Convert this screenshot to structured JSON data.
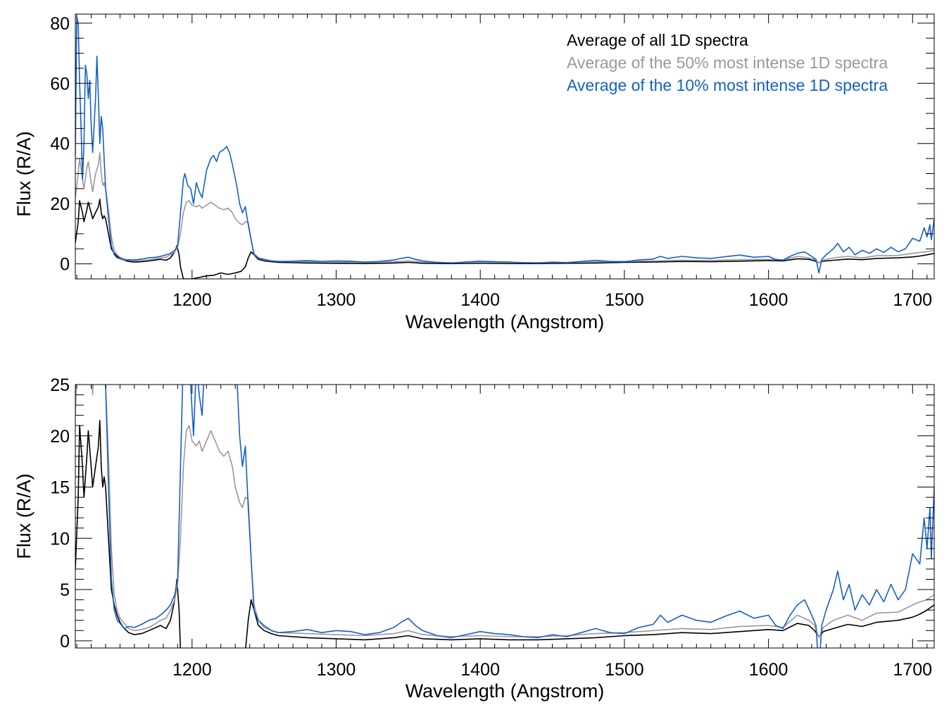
{
  "colors": {
    "all": "#000000",
    "top50": "#999999",
    "top10": "#1560c8"
  },
  "chart_data": [
    {
      "type": "line",
      "title": "",
      "xlabel": "Wavelength (Angstrom)",
      "ylabel": "Flux (R/A)",
      "xlim": [
        1119,
        1715
      ],
      "ylim": [
        -5,
        83
      ],
      "xticks": [
        1200,
        1300,
        1400,
        1500,
        1600,
        1700
      ],
      "xtick_labels": [
        "1200",
        "1300",
        "1400",
        "1500",
        "1600",
        "1700"
      ],
      "yticks": [
        0,
        20,
        40,
        60,
        80
      ],
      "ytick_labels": [
        "0",
        "20",
        "40",
        "60",
        "80"
      ],
      "x_minor_step": 10,
      "y_minor_step": 5,
      "grid": false,
      "legend": {
        "placement": "top-right",
        "entries": [
          {
            "label": "Average of all 1D spectra",
            "series": "all"
          },
          {
            "label": "Average of the 50% most intense 1D spectra",
            "series": "top50"
          },
          {
            "label": "Average of the 10% most intense 1D spectra",
            "series": "top10"
          }
        ]
      },
      "series_ref": "spectra"
    },
    {
      "type": "line",
      "title": "",
      "xlabel": "Wavelength (Angstrom)",
      "ylabel": "Flux (R/A)",
      "xlim": [
        1119,
        1715
      ],
      "ylim": [
        -0.7,
        25
      ],
      "xticks": [
        1200,
        1300,
        1400,
        1500,
        1600,
        1700
      ],
      "xtick_labels": [
        "1200",
        "1300",
        "1400",
        "1500",
        "1600",
        "1700"
      ],
      "yticks": [
        0,
        5,
        10,
        15,
        20,
        25
      ],
      "ytick_labels": [
        "0",
        "5",
        "10",
        "15",
        "20",
        "25"
      ],
      "x_minor_step": 10,
      "y_minor_step": 1,
      "grid": false,
      "series_ref": "spectra"
    }
  ],
  "spectra": [
    {
      "key": "all",
      "name": "Average of all 1D spectra",
      "points": [
        [
          1119,
          7
        ],
        [
          1121,
          14
        ],
        [
          1122,
          21
        ],
        [
          1124,
          17
        ],
        [
          1125,
          14
        ],
        [
          1127,
          18
        ],
        [
          1128,
          20.5
        ],
        [
          1130,
          17
        ],
        [
          1131,
          15
        ],
        [
          1133,
          17
        ],
        [
          1135,
          19
        ],
        [
          1136,
          21.5
        ],
        [
          1137,
          17
        ],
        [
          1138,
          15
        ],
        [
          1139,
          16
        ],
        [
          1140,
          15
        ],
        [
          1142,
          10
        ],
        [
          1144,
          5
        ],
        [
          1146,
          3.5
        ],
        [
          1148,
          2.5
        ],
        [
          1150,
          1.8
        ],
        [
          1153,
          1.2
        ],
        [
          1156,
          0.8
        ],
        [
          1160,
          0.6
        ],
        [
          1165,
          0.7
        ],
        [
          1170,
          1.0
        ],
        [
          1175,
          1.3
        ],
        [
          1178,
          1.5
        ],
        [
          1182,
          1.2
        ],
        [
          1185,
          2
        ],
        [
          1188,
          4
        ],
        [
          1189.5,
          6
        ],
        [
          1191,
          3
        ],
        [
          1192,
          -1
        ],
        [
          1194,
          -5
        ],
        [
          1200,
          -5
        ],
        [
          1205,
          -4.5
        ],
        [
          1210,
          -4
        ],
        [
          1215,
          -3.8
        ],
        [
          1220,
          -3
        ],
        [
          1225,
          -3.5
        ],
        [
          1230,
          -3
        ],
        [
          1234,
          -2.5
        ],
        [
          1237,
          -1
        ],
        [
          1239,
          2
        ],
        [
          1241,
          4
        ],
        [
          1243,
          3
        ],
        [
          1246,
          1.5
        ],
        [
          1250,
          1
        ],
        [
          1255,
          0.7
        ],
        [
          1260,
          0.5
        ],
        [
          1280,
          0.3
        ],
        [
          1300,
          0.2
        ],
        [
          1320,
          0.1
        ],
        [
          1340,
          0.3
        ],
        [
          1350,
          0.5
        ],
        [
          1360,
          0.2
        ],
        [
          1380,
          0.1
        ],
        [
          1400,
          0.2
        ],
        [
          1420,
          0.1
        ],
        [
          1440,
          0.1
        ],
        [
          1460,
          0.2
        ],
        [
          1480,
          0.3
        ],
        [
          1500,
          0.5
        ],
        [
          1520,
          0.6
        ],
        [
          1540,
          0.8
        ],
        [
          1560,
          0.7
        ],
        [
          1580,
          0.9
        ],
        [
          1600,
          1.1
        ],
        [
          1610,
          1.0
        ],
        [
          1620,
          1.7
        ],
        [
          1628,
          1.5
        ],
        [
          1632,
          1.0
        ],
        [
          1635,
          0.4
        ],
        [
          1638,
          0.9
        ],
        [
          1645,
          1.2
        ],
        [
          1655,
          1.6
        ],
        [
          1665,
          1.4
        ],
        [
          1675,
          1.8
        ],
        [
          1690,
          2.0
        ],
        [
          1700,
          2.3
        ],
        [
          1705,
          2.6
        ],
        [
          1710,
          3
        ],
        [
          1715,
          3.5
        ]
      ]
    },
    {
      "key": "top50",
      "name": "Average of the 50% most intense 1D spectra",
      "points": [
        [
          1119,
          22
        ],
        [
          1121,
          30
        ],
        [
          1122,
          35
        ],
        [
          1124,
          28
        ],
        [
          1125,
          25
        ],
        [
          1127,
          32
        ],
        [
          1128,
          34
        ],
        [
          1130,
          27
        ],
        [
          1131,
          24
        ],
        [
          1133,
          30
        ],
        [
          1135,
          33
        ],
        [
          1136,
          37
        ],
        [
          1137,
          30
        ],
        [
          1138,
          26
        ],
        [
          1139,
          27
        ],
        [
          1140,
          25
        ],
        [
          1142,
          18
        ],
        [
          1144,
          9
        ],
        [
          1146,
          4.5
        ],
        [
          1148,
          3
        ],
        [
          1150,
          2.2
        ],
        [
          1153,
          1.7
        ],
        [
          1156,
          1.2
        ],
        [
          1160,
          1.0
        ],
        [
          1165,
          1.1
        ],
        [
          1170,
          1.3
        ],
        [
          1175,
          1.7
        ],
        [
          1178,
          2
        ],
        [
          1182,
          2.2
        ],
        [
          1185,
          3
        ],
        [
          1188,
          4
        ],
        [
          1190,
          5.5
        ],
        [
          1192,
          10
        ],
        [
          1194,
          17
        ],
        [
          1196,
          20.5
        ],
        [
          1198,
          21
        ],
        [
          1200,
          19.5
        ],
        [
          1203,
          19
        ],
        [
          1205,
          19.5
        ],
        [
          1207,
          18.5
        ],
        [
          1210,
          19.5
        ],
        [
          1213,
          20.5
        ],
        [
          1216,
          19.5
        ],
        [
          1219,
          18.5
        ],
        [
          1222,
          18
        ],
        [
          1225,
          18.5
        ],
        [
          1228,
          17
        ],
        [
          1230,
          15
        ],
        [
          1233,
          13.5
        ],
        [
          1235,
          13
        ],
        [
          1237,
          14
        ],
        [
          1239,
          13.8
        ],
        [
          1241,
          8
        ],
        [
          1243,
          3.5
        ],
        [
          1246,
          2
        ],
        [
          1250,
          1.3
        ],
        [
          1255,
          1.0
        ],
        [
          1260,
          0.8
        ],
        [
          1280,
          0.7
        ],
        [
          1300,
          0.6
        ],
        [
          1320,
          0.5
        ],
        [
          1340,
          0.7
        ],
        [
          1350,
          1.0
        ],
        [
          1360,
          0.6
        ],
        [
          1380,
          0.4
        ],
        [
          1400,
          0.5
        ],
        [
          1420,
          0.4
        ],
        [
          1440,
          0.4
        ],
        [
          1460,
          0.5
        ],
        [
          1480,
          0.7
        ],
        [
          1500,
          0.8
        ],
        [
          1520,
          1.0
        ],
        [
          1540,
          1.2
        ],
        [
          1560,
          1.1
        ],
        [
          1580,
          1.4
        ],
        [
          1600,
          1.5
        ],
        [
          1610,
          1.3
        ],
        [
          1620,
          2.5
        ],
        [
          1628,
          2.0
        ],
        [
          1632,
          1.5
        ],
        [
          1635,
          0.3
        ],
        [
          1638,
          1.3
        ],
        [
          1645,
          2
        ],
        [
          1655,
          2.5
        ],
        [
          1665,
          2.0
        ],
        [
          1675,
          2.7
        ],
        [
          1690,
          2.8
        ],
        [
          1700,
          3.5
        ],
        [
          1705,
          3.8
        ],
        [
          1710,
          4
        ],
        [
          1715,
          4.5
        ]
      ]
    },
    {
      "key": "top10",
      "name": "Average of the 10% most intense 1D spectra",
      "points": [
        [
          1119,
          36
        ],
        [
          1120,
          82
        ],
        [
          1121,
          80
        ],
        [
          1122,
          60
        ],
        [
          1123,
          45
        ],
        [
          1124,
          28
        ],
        [
          1125,
          40
        ],
        [
          1126,
          66
        ],
        [
          1127,
          63
        ],
        [
          1128,
          55
        ],
        [
          1129,
          61
        ],
        [
          1130,
          46
        ],
        [
          1131,
          37
        ],
        [
          1133,
          55
        ],
        [
          1134,
          69
        ],
        [
          1135,
          55
        ],
        [
          1136,
          40
        ],
        [
          1137,
          49
        ],
        [
          1138,
          45
        ],
        [
          1139,
          35
        ],
        [
          1140,
          25
        ],
        [
          1142,
          15
        ],
        [
          1144,
          6
        ],
        [
          1146,
          3
        ],
        [
          1148,
          2
        ],
        [
          1150,
          1.7
        ],
        [
          1153,
          1.2
        ],
        [
          1156,
          1.4
        ],
        [
          1160,
          1.3
        ],
        [
          1165,
          1.6
        ],
        [
          1170,
          2
        ],
        [
          1175,
          2.2
        ],
        [
          1178,
          2.5
        ],
        [
          1182,
          3
        ],
        [
          1185,
          3.5
        ],
        [
          1188,
          4.5
        ],
        [
          1190,
          6
        ],
        [
          1192,
          17
        ],
        [
          1194,
          28
        ],
        [
          1195,
          30
        ],
        [
          1197,
          26
        ],
        [
          1199,
          25
        ],
        [
          1201,
          20
        ],
        [
          1203,
          27
        ],
        [
          1205,
          24
        ],
        [
          1207,
          22
        ],
        [
          1210,
          31
        ],
        [
          1213,
          35
        ],
        [
          1215,
          36
        ],
        [
          1217,
          34
        ],
        [
          1219,
          37
        ],
        [
          1222,
          38
        ],
        [
          1224,
          39
        ],
        [
          1226,
          37
        ],
        [
          1228,
          33
        ],
        [
          1231,
          26
        ],
        [
          1233,
          20
        ],
        [
          1235,
          17
        ],
        [
          1237,
          19
        ],
        [
          1239,
          13
        ],
        [
          1241,
          8
        ],
        [
          1243,
          3
        ],
        [
          1246,
          2
        ],
        [
          1250,
          1.5
        ],
        [
          1255,
          1.0
        ],
        [
          1260,
          0.8
        ],
        [
          1270,
          0.9
        ],
        [
          1280,
          1.1
        ],
        [
          1290,
          0.8
        ],
        [
          1300,
          1.0
        ],
        [
          1310,
          0.9
        ],
        [
          1320,
          0.6
        ],
        [
          1330,
          0.8
        ],
        [
          1340,
          1.3
        ],
        [
          1345,
          1.8
        ],
        [
          1350,
          2.2
        ],
        [
          1355,
          1.5
        ],
        [
          1360,
          1.0
        ],
        [
          1370,
          0.5
        ],
        [
          1380,
          0.3
        ],
        [
          1390,
          0.6
        ],
        [
          1400,
          0.9
        ],
        [
          1410,
          0.7
        ],
        [
          1420,
          0.6
        ],
        [
          1430,
          0.4
        ],
        [
          1440,
          0.3
        ],
        [
          1450,
          0.6
        ],
        [
          1460,
          0.4
        ],
        [
          1470,
          0.8
        ],
        [
          1480,
          1.2
        ],
        [
          1490,
          0.8
        ],
        [
          1500,
          0.7
        ],
        [
          1510,
          1.3
        ],
        [
          1520,
          1.6
        ],
        [
          1525,
          2.5
        ],
        [
          1530,
          1.8
        ],
        [
          1540,
          2.5
        ],
        [
          1550,
          2.0
        ],
        [
          1560,
          1.8
        ],
        [
          1570,
          2.4
        ],
        [
          1580,
          2.9
        ],
        [
          1590,
          2.2
        ],
        [
          1600,
          2.5
        ],
        [
          1605,
          1.5
        ],
        [
          1610,
          1.2
        ],
        [
          1615,
          2.5
        ],
        [
          1620,
          3.5
        ],
        [
          1625,
          4
        ],
        [
          1630,
          2.5
        ],
        [
          1633,
          1.5
        ],
        [
          1635,
          -3
        ],
        [
          1637,
          1.5
        ],
        [
          1640,
          3
        ],
        [
          1645,
          5
        ],
        [
          1648,
          6.8
        ],
        [
          1652,
          4
        ],
        [
          1656,
          5.5
        ],
        [
          1660,
          3
        ],
        [
          1665,
          4.5
        ],
        [
          1670,
          3.5
        ],
        [
          1675,
          5
        ],
        [
          1680,
          3.8
        ],
        [
          1685,
          5.5
        ],
        [
          1690,
          4
        ],
        [
          1695,
          5
        ],
        [
          1700,
          8.5
        ],
        [
          1705,
          7.5
        ],
        [
          1708,
          12
        ],
        [
          1710,
          9
        ],
        [
          1712,
          13
        ],
        [
          1713,
          8
        ],
        [
          1715,
          15
        ]
      ]
    }
  ]
}
